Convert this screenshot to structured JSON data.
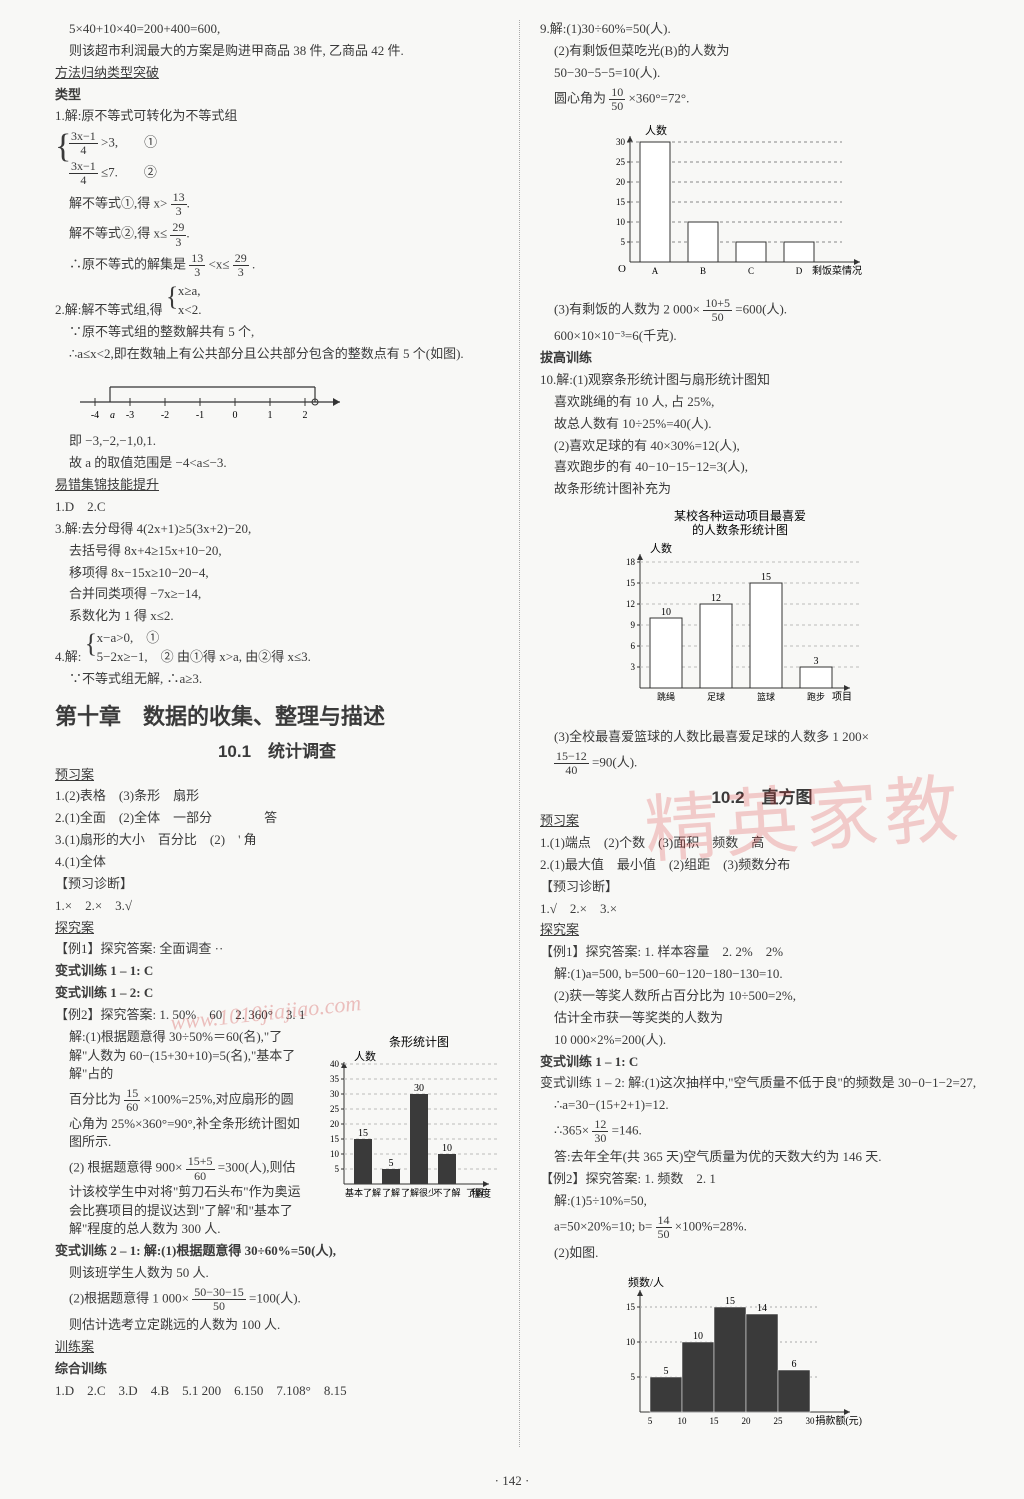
{
  "pageNumber": "· 142 ·",
  "watermark_main": "精英家教",
  "watermark_url": "www.1010jiajiao.com",
  "left": {
    "l1": "5×40+10×40=200+400=600,",
    "l2": "则该超市利润最大的方案是购进甲商品 38 件, 乙商品 42 件.",
    "sec1": "方法归纳类型突破",
    "leixing": "类型",
    "p1_1": "1.解:原不等式可转化为不等式组",
    "sys1a": "3x−1>3,　　①",
    "sys1a_frac_num": "3x−1",
    "sys1a_frac_den": "4",
    "sys1b": "3x−1≤7.　　②",
    "sys1b_frac_num": "3x−1",
    "sys1b_frac_den": "4",
    "p1_2": "解不等式①,得 x>",
    "f13_3_n": "13",
    "f13_3_d": "3",
    "p1_3": "解不等式②,得 x≤",
    "f29_3_n": "29",
    "f29_3_d": "3",
    "p1_4a": "∴原不等式的解集是 ",
    "p1_4b": "<x≤",
    "p1_4c": ".",
    "p2_1": "2.解:解不等式组,得",
    "sys2a": "x≥a,",
    "sys2b": "x<2.",
    "p2_2": "∵原不等式组的整数解共有 5 个,",
    "p2_3": "∴a≤x<2,即在数轴上有公共部分且公共部分包含的整数点有 5 个(如图).",
    "numberline": {
      "ticks": [
        -4,
        -3,
        -2,
        -1,
        0,
        1,
        2
      ],
      "a_label": "a",
      "a_between": [
        -4,
        -3
      ]
    },
    "p2_4": "即 −3,−2,−1,0,1.",
    "p2_5": "故 a 的取值范围是 −4<a≤−3.",
    "sec2": "易错集锦技能提升",
    "a1": "1.D　2.C",
    "p3_1": "3.解:去分母得 4(2x+1)≥5(3x+2)−20,",
    "p3_2": "去括号得 8x+4≥15x+10−20,",
    "p3_3": "移项得 8x−15x≥10−20−4,",
    "p3_4": "合并同类项得 −7x≥−14,",
    "p3_5": "系数化为 1 得 x≤2.",
    "p4_1": "4.解:",
    "sys4a": "x−a>0,　①",
    "sys4b": "5−2x≥−1,　②",
    "p4_1b": " 由①得 x>a, 由②得 x≤3.",
    "p4_2": "∵不等式组无解, ∴a≥3.",
    "chapter": "第十章　数据的收集、整理与描述",
    "section101": "10.1　统计调查",
    "yuxi": "预习案",
    "yuxi_1": "1.(2)表格　(3)条形　扇形",
    "yuxi_2": "2.(1)全面　(2)全体　一部分　　　　答",
    "yuxi_3": "3.(1)扇形的大小　百分比　(2)　' 角",
    "yuxi_4": "4.(1)全体",
    "yuxizhenduan": "【预习诊断】",
    "yz_1": "1.×　2.×　3.√",
    "tanjiu": "探究案",
    "li1": "【例1】探究答案: 全面调查 ··",
    "bs11": "变式训练 1 – 1: C",
    "bs12": "变式训练 1 – 2: C",
    "li2": "【例2】探究答案: 1. 50%　60　2. 360°　3. 1",
    "li2_s1": "解:(1)根据题意得 30÷50%＝60(名),\"了解\"人数为 60−(15+30+10)=5(名),\"基本了解\"占的",
    "li2_s2": "百分比为",
    "li2_f1n": "15",
    "li2_f1d": "60",
    "li2_s2b": "×100%=25%,对应扇形的圆心角为 25%×360°=90°,补全条形统计图如图所示.",
    "li2_s3": "(2) 根据题意得 900×",
    "li2_f2n": "15+5",
    "li2_f2d": "60",
    "li2_s3b": "=300(人),则估计该校学生中对将\"剪刀石头布\"作为奥运会比赛项目的提议达到\"了解\"和\"基本了解\"程度的总人数为 300 人.",
    "barChart1": {
      "title": "条形统计图",
      "ylabel": "人数",
      "xlabel": "程度",
      "categories": [
        "基本了解",
        "了解",
        "了解很少",
        "不了解",
        "了解"
      ],
      "values": [
        15,
        5,
        30,
        10,
        null
      ],
      "yticks": [
        5,
        10,
        15,
        20,
        25,
        30,
        35,
        40
      ],
      "bar_color": "#3a3a3a",
      "grid_color": "#bbb"
    },
    "bs21": "变式训练 2 – 1: 解:(1)根据题意得 30÷60%=50(人),",
    "bs21b": "则该班学生人数为 50 人.",
    "bs22a": "(2)根据题意得 1 000×",
    "bs22_fn": "50−30−15",
    "bs22_fd": "50",
    "bs22b": "=100(人).",
    "bs22c": "则估计选考立定跳远的人数为 100 人.",
    "xunlian": "训练案",
    "zonghe": "综合训练",
    "zh_1": "1.D　2.C　3.D　4.B　5.1 200　6.150　7.108°　8.15"
  },
  "right": {
    "q9_1": "9.解:(1)30÷60%=50(人).",
    "q9_2": "(2)有剩饭但菜吃光(B)的人数为",
    "q9_3": "50−30−5−5=10(人).",
    "q9_4a": "圆心角为",
    "q9_fn1": "10",
    "q9_fd1": "50",
    "q9_4b": "×360°=72°.",
    "barChart2": {
      "ylabel": "人数",
      "xlabel": "剩饭菜情况",
      "categories": [
        "A",
        "B",
        "C",
        "D"
      ],
      "values": [
        30,
        10,
        5,
        5
      ],
      "yticks": [
        5,
        10,
        15,
        20,
        25,
        30
      ],
      "bar_color": "#ffffff",
      "border_color": "#000",
      "dashed_color": "#888"
    },
    "q9_5a": "(3)有剩饭的人数为 2 000×",
    "q9_fn2": "10+5",
    "q9_fd2": "50",
    "q9_5b": "=600(人).",
    "q9_6": "600×10×10⁻³=6(千克).",
    "bagao": "拔高训练",
    "q10_1": "10.解:(1)观察条形统计图与扇形统计图知",
    "q10_2": "喜欢跳绳的有 10 人, 占 25%,",
    "q10_3": "故总人数有 10÷25%=40(人).",
    "q10_4": "(2)喜欢足球的有 40×30%=12(人),",
    "q10_5": "喜欢跑步的有 40−10−15−12=3(人),",
    "q10_6": "故条形统计图补充为",
    "barChart3": {
      "title1": "某校各种运动项目最喜爱",
      "title2": "的人数条形统计图",
      "ylabel": "人数",
      "xlabel": "项目",
      "categories": [
        "跳绳",
        "足球",
        "篮球",
        "跑步"
      ],
      "values": [
        10,
        12,
        15,
        3
      ],
      "yticks": [
        3,
        6,
        9,
        12,
        15,
        18
      ],
      "bar_color": "#ffffff",
      "border_color": "#000"
    },
    "q10_7a": "(3)全校最喜爱篮球的人数比最喜爱足球的人数多 1 200×",
    "q10_fn": "15−12",
    "q10_fd": "40",
    "q10_7b": "=90(人).",
    "section102": "10.2　直方图",
    "yuxi": "预习案",
    "yuxi_1": "1.(1)端点　(2)个数　(3)面积　频数　高",
    "yuxi_2": "2.(1)最大值　最小值　(2)组距　(3)频数分布",
    "yuxizhenduan": "【预习诊断】",
    "yz_1": "1.√　2.×　3.×",
    "tanjiu": "探究案",
    "li1": "【例1】探究答案: 1. 样本容量　2. 2%　2%",
    "li1_s1": "解:(1)a=500, b=500−60−120−180−130=10.",
    "li1_s2": "(2)获一等奖人数所占百分比为 10÷500=2%,",
    "li1_s3": "估计全市获一等奖类的人数为",
    "li1_s4": "10 000×2%=200(人).",
    "bs11": "变式训练 1 – 1: C",
    "bs12a": "变式训练 1 – 2: 解:(1)这次抽样中,\"空气质量不低于良\"的频数是 30−0−1−2=27,",
    "bs12b": "∴a=30−(15+2+1)=12.",
    "bs12c": "∴365×",
    "bs12_fn": "12",
    "bs12_fd": "30",
    "bs12d": "=146.",
    "bs12e": "答:去年全年(共 365 天)空气质量为优的天数大约为 146 天.",
    "li2": "【例2】探究答案: 1. 频数　2. 1",
    "li2_s1": "解:(1)5÷10%=50,",
    "li2_s2a": "a=50×20%=10; b=",
    "li2_fn": "14",
    "li2_fd": "50",
    "li2_s2b": "×100%=28%.",
    "li2_s3": "(2)如图.",
    "histogram": {
      "ylabel": "频数/人",
      "xlabel": "捐款额(元)",
      "xticks": [
        5,
        10,
        15,
        20,
        25,
        30
      ],
      "values": [
        5,
        10,
        15,
        14,
        6
      ],
      "labels": [
        "5",
        "10",
        "15",
        "14",
        "6"
      ],
      "yticks": [
        5,
        10,
        15
      ],
      "bar_color": "#3a3a3a"
    }
  }
}
